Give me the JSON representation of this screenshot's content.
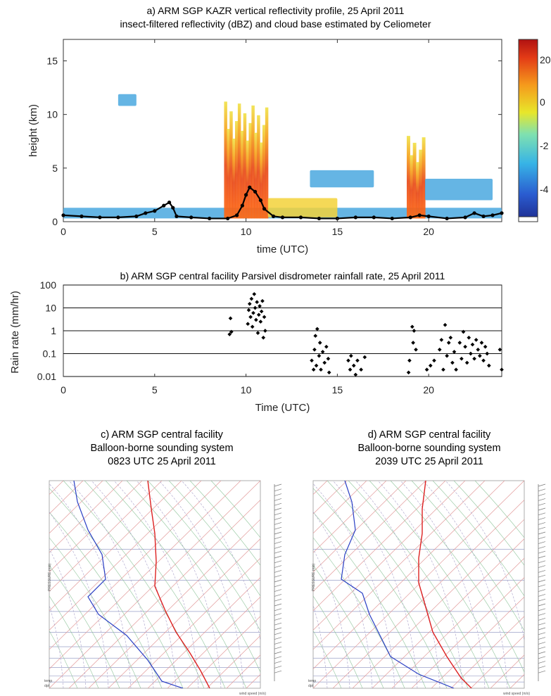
{
  "panel_a": {
    "title_line1": "a) ARM SGP KAZR vertical reflectivity profile, 25 April 2011",
    "title_line2": "insect-filtered reflectivity (dBZ) and cloud base estimated by Celiometer",
    "colorbar_ticks": [
      "20",
      "0",
      "-2",
      "-4"
    ]
  },
  "panel_b": {
    "title": "b) ARM SGP central facility Parsivel disdrometer rainfall rate, 25 April 2011"
  },
  "panel_c": {
    "title_line1": "c) ARM SGP central facility",
    "title_line2": "Balloon-borne sounding system",
    "title_line3": "0823 UTC 25 April 2011"
  },
  "panel_d": {
    "title_line1": "d) ARM SGP central facility",
    "title_line2": "Balloon-borne sounding system",
    "title_line3": "2039 UTC 25 April 2011"
  },
  "sounding_common": {
    "yaxis_label": "PRESSURE (mb)",
    "legend_line1": "temp",
    "legend_line2": "dpt",
    "wind_label": "wind speed (m/s)"
  },
  "chart_data": [
    {
      "type": "heatmap",
      "xlabel": "time (UTC)",
      "ylabel": "height (km)",
      "xlim": [
        0,
        24
      ],
      "ylim": [
        0,
        17
      ],
      "xticks": [
        0,
        5,
        10,
        15,
        20
      ],
      "yticks": [
        0,
        5,
        10,
        15
      ],
      "colormap": "jet",
      "colors": {
        "low": "#1e3ea8",
        "high": "#c81414"
      },
      "reflectivity_regions": [
        {
          "t0": 0.0,
          "t1": 24.0,
          "h0": 0.3,
          "h1": 1.3,
          "dbz": -30
        },
        {
          "t0": 3.0,
          "t1": 4.0,
          "h0": 10.8,
          "h1": 11.9,
          "dbz": -25
        },
        {
          "t0": 8.8,
          "t1": 11.2,
          "h0": 0.3,
          "h1": 11.2,
          "dbz": 5
        },
        {
          "t0": 11.2,
          "t1": 15.0,
          "h0": 0.4,
          "h1": 2.2,
          "dbz": -10
        },
        {
          "t0": 13.5,
          "t1": 17.0,
          "h0": 3.2,
          "h1": 4.8,
          "dbz": -25
        },
        {
          "t0": 18.8,
          "t1": 19.8,
          "h0": 0.3,
          "h1": 8.0,
          "dbz": 3
        },
        {
          "t0": 19.8,
          "t1": 23.5,
          "h0": 2.0,
          "h1": 4.0,
          "dbz": -30
        }
      ],
      "cloud_base": {
        "marker_color": "#000000",
        "points": [
          [
            0.0,
            0.6
          ],
          [
            1.0,
            0.5
          ],
          [
            2.0,
            0.4
          ],
          [
            3.0,
            0.4
          ],
          [
            4.0,
            0.5
          ],
          [
            4.5,
            0.8
          ],
          [
            5.0,
            1.0
          ],
          [
            5.5,
            1.5
          ],
          [
            5.8,
            1.8
          ],
          [
            6.0,
            1.3
          ],
          [
            6.2,
            0.5
          ],
          [
            7.0,
            0.4
          ],
          [
            8.0,
            0.3
          ],
          [
            9.0,
            0.3
          ],
          [
            9.5,
            0.6
          ],
          [
            9.8,
            1.5
          ],
          [
            10.0,
            2.5
          ],
          [
            10.2,
            3.2
          ],
          [
            10.5,
            2.8
          ],
          [
            10.8,
            2.0
          ],
          [
            11.0,
            1.2
          ],
          [
            11.5,
            0.5
          ],
          [
            12.0,
            0.4
          ],
          [
            13.0,
            0.4
          ],
          [
            14.0,
            0.3
          ],
          [
            15.0,
            0.3
          ],
          [
            16.0,
            0.4
          ],
          [
            17.0,
            0.4
          ],
          [
            18.0,
            0.3
          ],
          [
            19.0,
            0.4
          ],
          [
            19.5,
            0.6
          ],
          [
            20.0,
            0.5
          ],
          [
            21.0,
            0.3
          ],
          [
            22.0,
            0.4
          ],
          [
            22.5,
            0.8
          ],
          [
            23.0,
            0.5
          ],
          [
            23.5,
            0.6
          ],
          [
            24.0,
            0.8
          ]
        ]
      }
    },
    {
      "type": "scatter",
      "xlabel": "Time (UTC)",
      "ylabel": "Rain rate (mm/hr)",
      "xlim": [
        0,
        24
      ],
      "ylim": [
        0.01,
        100
      ],
      "yscale": "log",
      "xticks": [
        0,
        5,
        10,
        15,
        20
      ],
      "yticks": [
        0.01,
        0.1,
        1,
        10,
        100
      ],
      "ytick_labels": [
        "0.01",
        "0.1",
        "1",
        "10",
        "100"
      ],
      "grid": "horizontal",
      "points": [
        [
          9.1,
          0.7
        ],
        [
          9.15,
          3.5
        ],
        [
          9.2,
          0.9
        ],
        [
          10.1,
          2.0
        ],
        [
          10.15,
          8.0
        ],
        [
          10.2,
          15.0
        ],
        [
          10.25,
          4.0
        ],
        [
          10.3,
          25.0
        ],
        [
          10.35,
          1.5
        ],
        [
          10.4,
          6.0
        ],
        [
          10.45,
          40.0
        ],
        [
          10.5,
          10.0
        ],
        [
          10.55,
          3.0
        ],
        [
          10.6,
          18.0
        ],
        [
          10.65,
          0.8
        ],
        [
          10.7,
          5.0
        ],
        [
          10.75,
          12.0
        ],
        [
          10.8,
          2.5
        ],
        [
          10.85,
          7.0
        ],
        [
          10.9,
          20.0
        ],
        [
          10.95,
          0.5
        ],
        [
          11.0,
          4.0
        ],
        [
          11.05,
          1.0
        ],
        [
          13.6,
          0.05
        ],
        [
          13.7,
          0.02
        ],
        [
          13.75,
          0.15
        ],
        [
          13.8,
          0.6
        ],
        [
          13.85,
          0.03
        ],
        [
          13.9,
          1.2
        ],
        [
          14.0,
          0.08
        ],
        [
          14.05,
          0.3
        ],
        [
          14.1,
          0.02
        ],
        [
          14.2,
          0.12
        ],
        [
          14.3,
          0.04
        ],
        [
          14.4,
          0.2
        ],
        [
          14.5,
          0.06
        ],
        [
          14.55,
          0.015
        ],
        [
          15.6,
          0.05
        ],
        [
          15.7,
          0.02
        ],
        [
          15.75,
          0.08
        ],
        [
          15.9,
          0.03
        ],
        [
          16.0,
          0.012
        ],
        [
          16.1,
          0.05
        ],
        [
          16.3,
          0.02
        ],
        [
          16.5,
          0.07
        ],
        [
          18.9,
          0.015
        ],
        [
          18.95,
          0.05
        ],
        [
          19.1,
          1.5
        ],
        [
          19.15,
          0.3
        ],
        [
          19.2,
          1.0
        ],
        [
          19.3,
          0.15
        ],
        [
          19.9,
          0.02
        ],
        [
          20.1,
          0.03
        ],
        [
          20.3,
          0.05
        ],
        [
          20.6,
          0.15
        ],
        [
          20.7,
          0.4
        ],
        [
          20.8,
          0.02
        ],
        [
          20.9,
          1.8
        ],
        [
          21.0,
          0.08
        ],
        [
          21.1,
          0.3
        ],
        [
          21.2,
          0.5
        ],
        [
          21.3,
          0.04
        ],
        [
          21.4,
          0.12
        ],
        [
          21.5,
          0.02
        ],
        [
          21.7,
          0.3
        ],
        [
          21.8,
          0.06
        ],
        [
          21.9,
          0.9
        ],
        [
          22.0,
          0.2
        ],
        [
          22.1,
          0.04
        ],
        [
          22.2,
          0.5
        ],
        [
          22.3,
          0.1
        ],
        [
          22.4,
          0.25
        ],
        [
          22.5,
          0.06
        ],
        [
          22.6,
          0.4
        ],
        [
          22.7,
          0.15
        ],
        [
          22.8,
          0.08
        ],
        [
          22.9,
          0.3
        ],
        [
          23.0,
          0.05
        ],
        [
          23.1,
          0.2
        ],
        [
          23.2,
          0.1
        ],
        [
          23.3,
          0.03
        ],
        [
          23.9,
          0.15
        ],
        [
          24.0,
          0.02
        ]
      ]
    }
  ]
}
